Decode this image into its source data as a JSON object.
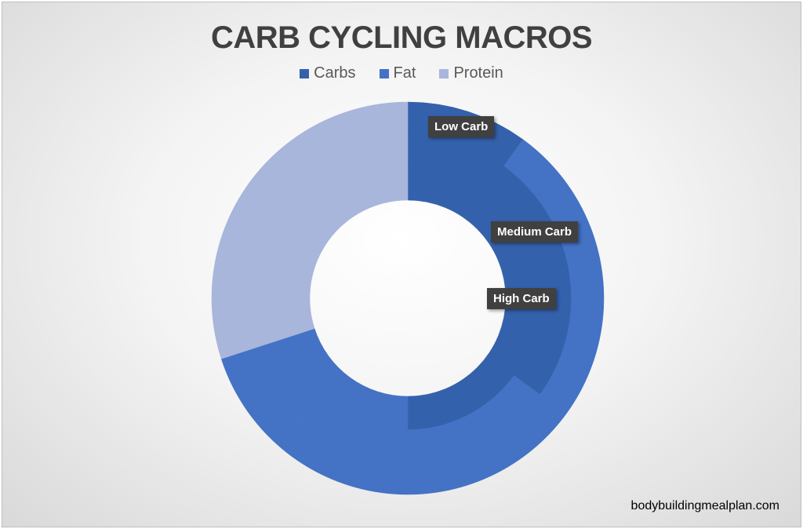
{
  "chart_data": {
    "type": "doughnut",
    "title": "CARB CYCLING MACROS",
    "legend_position": "top",
    "categories": [
      "Carbs",
      "Fat",
      "Protein"
    ],
    "colors": [
      "#3461ab",
      "#4472c4",
      "#a8b6dc"
    ],
    "rings": [
      {
        "name": "Low Carb",
        "values": [
          10,
          60,
          30
        ]
      },
      {
        "name": "Medium Carb",
        "values": [
          35,
          35,
          30
        ]
      },
      {
        "name": "High Carb",
        "values": [
          50,
          20,
          30
        ]
      }
    ]
  },
  "source": "bodybuildingmealplan.com"
}
